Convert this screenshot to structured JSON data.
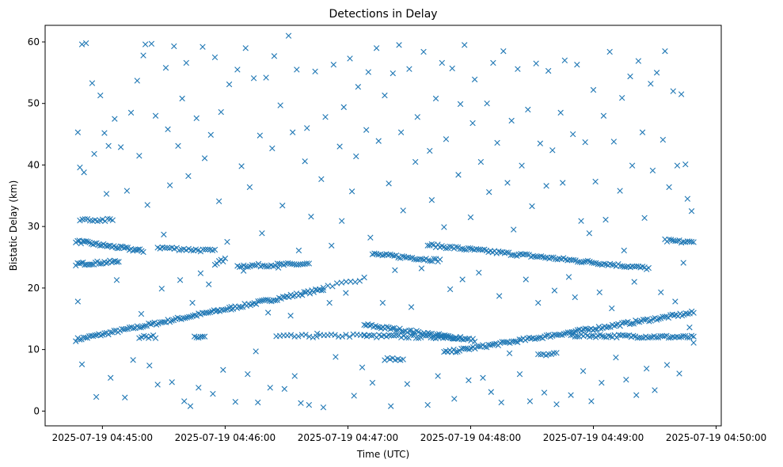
{
  "chart_data": {
    "type": "scatter",
    "title": "Detections in Delay",
    "xlabel": "Time (UTC)",
    "ylabel": "Bistatic Delay (km)",
    "x_unit": "seconds after 2025-07-19 04:45:00",
    "xlim": [
      -28,
      302.5
    ],
    "ylim": [
      -2.4,
      62.7
    ],
    "grid": false,
    "marker": "x",
    "color": "#1f77b4",
    "xticks": [
      {
        "value": 0,
        "label": "2025-07-19 04:45:00"
      },
      {
        "value": 60,
        "label": "2025-07-19 04:46:00"
      },
      {
        "value": 120,
        "label": "2025-07-19 04:47:00"
      },
      {
        "value": 180,
        "label": "2025-07-19 04:48:00"
      },
      {
        "value": 240,
        "label": "2025-07-19 04:49:00"
      },
      {
        "value": 300,
        "label": "2025-07-19 04:50:00"
      }
    ],
    "yticks": [
      {
        "value": 0,
        "label": "0"
      },
      {
        "value": 10,
        "label": "10"
      },
      {
        "value": 20,
        "label": "20"
      },
      {
        "value": 30,
        "label": "30"
      },
      {
        "value": 40,
        "label": "40"
      },
      {
        "value": 50,
        "label": "50"
      },
      {
        "value": 60,
        "label": "60"
      }
    ],
    "tracks": [
      {
        "x0": -13,
        "x1": 108,
        "y0": 11.6,
        "y1": 19.8,
        "n": 130
      },
      {
        "x0": 108,
        "x1": 128,
        "y0": 20.2,
        "y1": 21.5,
        "n": 10
      },
      {
        "x0": -13,
        "x1": 20,
        "y0": 27.6,
        "y1": 26.0,
        "n": 40
      },
      {
        "x0": 27,
        "x1": 55,
        "y0": 26.6,
        "y1": 26.0,
        "n": 25
      },
      {
        "x0": -13,
        "x1": 8,
        "y0": 23.9,
        "y1": 24.3,
        "n": 25
      },
      {
        "x0": 55,
        "x1": 60,
        "y0": 24.0,
        "y1": 24.6,
        "n": 6
      },
      {
        "x0": 66,
        "x1": 101,
        "y0": 23.6,
        "y1": 23.9,
        "n": 35
      },
      {
        "x0": 85,
        "x1": 128,
        "y0": 12.1,
        "y1": 12.3,
        "n": 25
      },
      {
        "x0": 128,
        "x1": 182,
        "y0": 14.0,
        "y1": 11.5,
        "n": 60
      },
      {
        "x0": 128,
        "x1": 175,
        "y0": 12.2,
        "y1": 12.0,
        "n": 40
      },
      {
        "x0": 132,
        "x1": 165,
        "y0": 25.5,
        "y1": 24.5,
        "n": 35
      },
      {
        "x0": 159,
        "x1": 267,
        "y0": 27.0,
        "y1": 23.2,
        "n": 110
      },
      {
        "x0": 167,
        "x1": 289,
        "y0": 9.5,
        "y1": 16.0,
        "n": 130
      },
      {
        "x0": 229,
        "x1": 289,
        "y0": 12.3,
        "y1": 12.0,
        "n": 60
      },
      {
        "x0": 275,
        "x1": 289,
        "y0": 27.7,
        "y1": 27.4,
        "n": 15
      },
      {
        "x0": 18,
        "x1": 26,
        "y0": 12.1,
        "y1": 12.1,
        "n": 8
      },
      {
        "x0": 45,
        "x1": 50,
        "y0": 11.9,
        "y1": 11.9,
        "n": 6
      },
      {
        "x0": 138,
        "x1": 147,
        "y0": 8.5,
        "y1": 8.5,
        "n": 8
      },
      {
        "x0": 213,
        "x1": 222,
        "y0": 9.3,
        "y1": 9.3,
        "n": 8
      },
      {
        "x0": -11,
        "x1": 5,
        "y0": 31.2,
        "y1": 31.0,
        "n": 14
      }
    ],
    "points": [
      [
        -12,
        45.3
      ],
      [
        -11,
        39.6
      ],
      [
        -10,
        59.6
      ],
      [
        -8,
        59.8
      ],
      [
        -9,
        38.8
      ],
      [
        -12,
        17.8
      ],
      [
        -10,
        7.6
      ],
      [
        -5,
        53.3
      ],
      [
        -4,
        41.8
      ],
      [
        -3,
        2.3
      ],
      [
        -1,
        51.3
      ],
      [
        1,
        45.2
      ],
      [
        2,
        35.3
      ],
      [
        3,
        43.1
      ],
      [
        4,
        5.4
      ],
      [
        6,
        47.5
      ],
      [
        7,
        21.3
      ],
      [
        9,
        42.9
      ],
      [
        11,
        2.2
      ],
      [
        12,
        35.8
      ],
      [
        14,
        48.5
      ],
      [
        15,
        8.3
      ],
      [
        17,
        53.7
      ],
      [
        18,
        41.5
      ],
      [
        19,
        15.8
      ],
      [
        20,
        57.8
      ],
      [
        21,
        59.6
      ],
      [
        22,
        33.5
      ],
      [
        24,
        59.7
      ],
      [
        23,
        7.4
      ],
      [
        26,
        48.0
      ],
      [
        27,
        4.3
      ],
      [
        29,
        19.9
      ],
      [
        30,
        28.7
      ],
      [
        31,
        55.8
      ],
      [
        32,
        45.8
      ],
      [
        33,
        36.7
      ],
      [
        34,
        4.7
      ],
      [
        35,
        59.3
      ],
      [
        37,
        43.1
      ],
      [
        38,
        21.3
      ],
      [
        39,
        50.8
      ],
      [
        40,
        1.6
      ],
      [
        41,
        56.6
      ],
      [
        42,
        38.2
      ],
      [
        43,
        0.8
      ],
      [
        44,
        17.6
      ],
      [
        46,
        47.6
      ],
      [
        47,
        3.8
      ],
      [
        48,
        22.4
      ],
      [
        49,
        59.2
      ],
      [
        50,
        41.1
      ],
      [
        52,
        20.6
      ],
      [
        53,
        44.9
      ],
      [
        54,
        2.8
      ],
      [
        55,
        57.5
      ],
      [
        56,
        16.3
      ],
      [
        57,
        34.1
      ],
      [
        58,
        48.6
      ],
      [
        59,
        6.7
      ],
      [
        61,
        27.5
      ],
      [
        62,
        53.1
      ],
      [
        63,
        16.5
      ],
      [
        65,
        1.5
      ],
      [
        66,
        55.5
      ],
      [
        68,
        39.8
      ],
      [
        69,
        22.8
      ],
      [
        70,
        59.0
      ],
      [
        71,
        6.0
      ],
      [
        72,
        36.4
      ],
      [
        74,
        54.1
      ],
      [
        75,
        9.7
      ],
      [
        76,
        1.4
      ],
      [
        77,
        44.8
      ],
      [
        78,
        28.9
      ],
      [
        80,
        54.2
      ],
      [
        81,
        16.0
      ],
      [
        82,
        3.8
      ],
      [
        83,
        42.7
      ],
      [
        84,
        57.7
      ],
      [
        86,
        23.3
      ],
      [
        87,
        49.7
      ],
      [
        88,
        33.4
      ],
      [
        89,
        3.6
      ],
      [
        91,
        61.0
      ],
      [
        92,
        15.5
      ],
      [
        93,
        45.3
      ],
      [
        94,
        5.7
      ],
      [
        95,
        55.5
      ],
      [
        96,
        26.1
      ],
      [
        97,
        1.3
      ],
      [
        99,
        40.6
      ],
      [
        100,
        46.0
      ],
      [
        101,
        1.0
      ],
      [
        102,
        31.6
      ],
      [
        104,
        55.2
      ],
      [
        105,
        12.6
      ],
      [
        107,
        37.7
      ],
      [
        108,
        0.6
      ],
      [
        109,
        47.8
      ],
      [
        111,
        17.6
      ],
      [
        112,
        26.9
      ],
      [
        113,
        56.3
      ],
      [
        114,
        8.8
      ],
      [
        116,
        43.0
      ],
      [
        117,
        30.9
      ],
      [
        118,
        49.4
      ],
      [
        119,
        19.2
      ],
      [
        121,
        57.3
      ],
      [
        122,
        35.7
      ],
      [
        123,
        2.5
      ],
      [
        124,
        41.4
      ],
      [
        125,
        52.7
      ],
      [
        127,
        7.1
      ],
      [
        129,
        45.7
      ],
      [
        130,
        55.1
      ],
      [
        131,
        28.2
      ],
      [
        132,
        4.6
      ],
      [
        134,
        59.0
      ],
      [
        135,
        43.9
      ],
      [
        137,
        17.6
      ],
      [
        138,
        51.3
      ],
      [
        140,
        37.0
      ],
      [
        141,
        0.8
      ],
      [
        142,
        54.9
      ],
      [
        143,
        22.9
      ],
      [
        145,
        59.5
      ],
      [
        146,
        45.3
      ],
      [
        147,
        32.6
      ],
      [
        149,
        4.4
      ],
      [
        150,
        55.6
      ],
      [
        151,
        16.9
      ],
      [
        153,
        40.5
      ],
      [
        154,
        47.8
      ],
      [
        156,
        23.2
      ],
      [
        157,
        58.4
      ],
      [
        159,
        1.0
      ],
      [
        160,
        42.3
      ],
      [
        161,
        34.3
      ],
      [
        163,
        50.8
      ],
      [
        164,
        5.7
      ],
      [
        166,
        56.6
      ],
      [
        167,
        29.9
      ],
      [
        168,
        44.2
      ],
      [
        170,
        19.8
      ],
      [
        171,
        55.7
      ],
      [
        172,
        2.0
      ],
      [
        174,
        38.4
      ],
      [
        175,
        49.9
      ],
      [
        176,
        21.4
      ],
      [
        177,
        59.5
      ],
      [
        179,
        5.0
      ],
      [
        180,
        31.5
      ],
      [
        181,
        46.8
      ],
      [
        182,
        53.9
      ],
      [
        184,
        22.5
      ],
      [
        185,
        40.5
      ],
      [
        186,
        5.4
      ],
      [
        188,
        50.0
      ],
      [
        189,
        35.6
      ],
      [
        190,
        3.1
      ],
      [
        191,
        56.6
      ],
      [
        193,
        43.6
      ],
      [
        194,
        18.7
      ],
      [
        195,
        1.4
      ],
      [
        196,
        58.5
      ],
      [
        198,
        37.1
      ],
      [
        199,
        9.4
      ],
      [
        200,
        47.2
      ],
      [
        201,
        29.5
      ],
      [
        203,
        55.6
      ],
      [
        204,
        6.0
      ],
      [
        205,
        39.9
      ],
      [
        207,
        21.4
      ],
      [
        208,
        49.0
      ],
      [
        209,
        1.6
      ],
      [
        210,
        33.3
      ],
      [
        212,
        56.5
      ],
      [
        213,
        17.6
      ],
      [
        214,
        43.5
      ],
      [
        216,
        3.0
      ],
      [
        217,
        36.6
      ],
      [
        218,
        55.3
      ],
      [
        220,
        42.4
      ],
      [
        221,
        19.6
      ],
      [
        222,
        1.1
      ],
      [
        224,
        48.5
      ],
      [
        225,
        37.1
      ],
      [
        226,
        57.0
      ],
      [
        228,
        21.8
      ],
      [
        229,
        2.6
      ],
      [
        230,
        45.0
      ],
      [
        231,
        18.5
      ],
      [
        232,
        56.3
      ],
      [
        234,
        30.9
      ],
      [
        235,
        6.5
      ],
      [
        236,
        43.7
      ],
      [
        238,
        28.9
      ],
      [
        239,
        1.6
      ],
      [
        240,
        52.2
      ],
      [
        241,
        37.3
      ],
      [
        243,
        19.3
      ],
      [
        244,
        4.6
      ],
      [
        245,
        48.0
      ],
      [
        246,
        31.1
      ],
      [
        248,
        58.4
      ],
      [
        249,
        16.7
      ],
      [
        250,
        43.8
      ],
      [
        251,
        8.7
      ],
      [
        253,
        35.8
      ],
      [
        254,
        50.9
      ],
      [
        255,
        26.1
      ],
      [
        256,
        5.1
      ],
      [
        258,
        54.4
      ],
      [
        259,
        39.9
      ],
      [
        260,
        21.0
      ],
      [
        261,
        2.6
      ],
      [
        262,
        56.9
      ],
      [
        264,
        45.3
      ],
      [
        265,
        31.4
      ],
      [
        266,
        6.9
      ],
      [
        268,
        53.2
      ],
      [
        269,
        39.1
      ],
      [
        270,
        3.4
      ],
      [
        271,
        55.0
      ],
      [
        273,
        19.3
      ],
      [
        274,
        44.1
      ],
      [
        275,
        58.5
      ],
      [
        276,
        7.5
      ],
      [
        277,
        36.4
      ],
      [
        279,
        52.0
      ],
      [
        280,
        17.8
      ],
      [
        281,
        39.9
      ],
      [
        282,
        6.1
      ],
      [
        283,
        51.5
      ],
      [
        284,
        24.1
      ],
      [
        285,
        40.1
      ],
      [
        286,
        34.5
      ],
      [
        287,
        13.6
      ],
      [
        288,
        32.5
      ],
      [
        289,
        11.1
      ]
    ]
  }
}
